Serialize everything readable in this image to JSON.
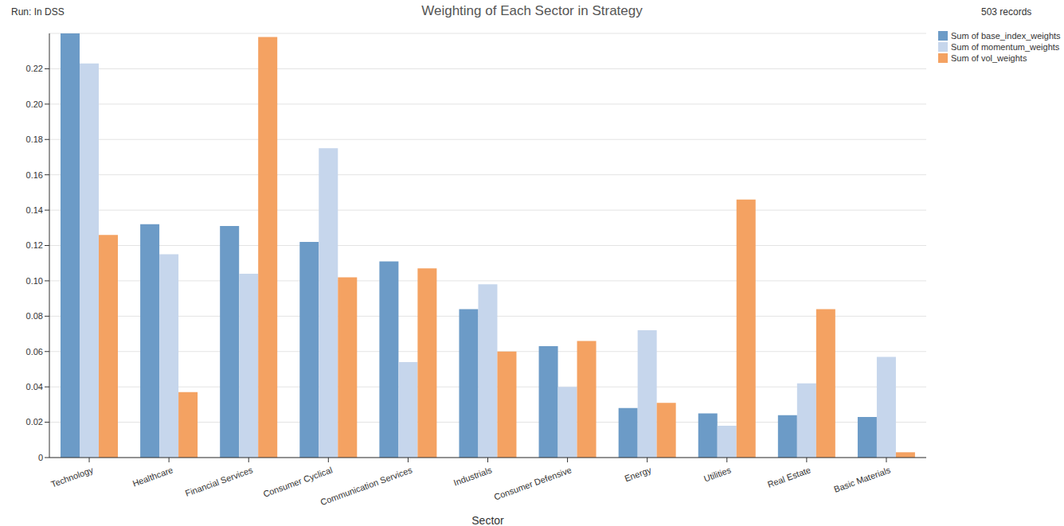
{
  "chart_data": {
    "type": "bar",
    "title": "Weighting of Each Sector in Strategy",
    "annotations": [
      "Run: In DSS",
      "503 records"
    ],
    "xlabel": "Sector",
    "categories": [
      "Technology",
      "Healthcare",
      "Financial Services",
      "Consumer Cyclical",
      "Communication Services",
      "Industrials",
      "Consumer Defensive",
      "Energy",
      "Utilities",
      "Real Estate",
      "Basic Materials"
    ],
    "series": [
      {
        "name": "Sum of base_index_weights",
        "color": "#6c9bc7",
        "values": [
          0.24,
          0.132,
          0.131,
          0.122,
          0.111,
          0.084,
          0.063,
          0.028,
          0.025,
          0.024,
          0.023
        ]
      },
      {
        "name": "Sum of momentum_weights",
        "color": "#c6d6ec",
        "values": [
          0.223,
          0.115,
          0.104,
          0.175,
          0.054,
          0.098,
          0.04,
          0.072,
          0.018,
          0.042,
          0.057
        ]
      },
      {
        "name": "Sum of vol_weights",
        "color": "#f4a262",
        "values": [
          0.126,
          0.037,
          0.238,
          0.102,
          0.107,
          0.06,
          0.066,
          0.031,
          0.146,
          0.084,
          0.003
        ]
      }
    ],
    "ylim": [
      0,
      0.24
    ],
    "yticks": [
      0,
      0.02,
      0.04,
      0.06,
      0.08,
      {
        "value": 0.1,
        "label": "0.10"
      },
      0.12,
      0.14,
      0.16,
      0.18,
      {
        "value": 0.2,
        "label": "0.20"
      },
      0.22
    ],
    "grid": true,
    "legend": "top-right"
  }
}
